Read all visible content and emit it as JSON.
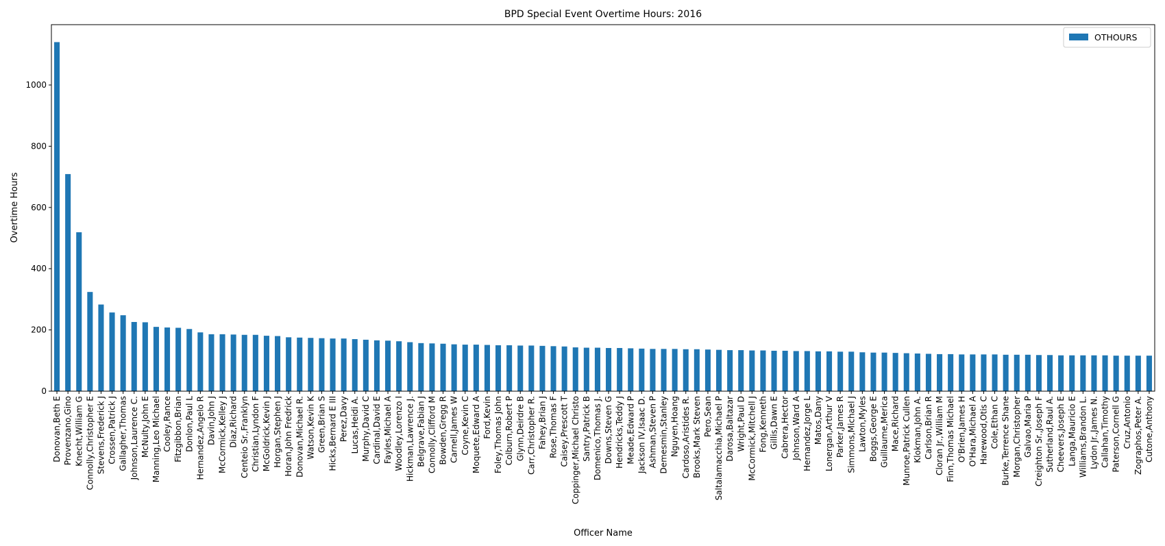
{
  "chart_data": {
    "type": "bar",
    "title": "BPD Special Event Overtime Hours: 2016",
    "xlabel": "Officer Name",
    "ylabel": "Overtime Hours",
    "ylim": [
      0,
      1197
    ],
    "yticks": [
      0,
      200,
      400,
      600,
      800,
      1000
    ],
    "grid": false,
    "legend_position": "top-right",
    "bar_color": "#1f77b4",
    "categories": [
      "Donovan,Beth E",
      "Provenzano,Gino",
      "Knecht,William G",
      "Connolly,Christopher E",
      "Stevens,Frederick J",
      "Crossen,Patrick J",
      "Gallagher,Thomas",
      "Johnson,Laurence C.",
      "McNulty,John E",
      "Manning,Leo Michael",
      "Cooley,Rance",
      "Fitzgibbon,Brian",
      "Donlon,Paul L",
      "Hernandez,Angelo R",
      "Davin,John J",
      "McCormick,Kelley J",
      "Diaz,Richard",
      "Centeio Sr.,Franklyn",
      "Christian,Lyndon F",
      "McGoldrick,Kevin J",
      "Horgan,Stephen J",
      "Horan,John Fredrick",
      "Donovan,Michael R.",
      "Watson,Kevin K",
      "Green,Brian S",
      "Hicks,Bernard E III",
      "Perez,Davy",
      "Lucas,Heidi A.",
      "Murphy,David C",
      "Cardinal,David E",
      "Fayles,Michael A",
      "Woodley,Lorenzo I",
      "Hickman,Lawrence J.",
      "Belgrave,Fabian J",
      "Connolly,Clifford M",
      "Bowden,Gregg R",
      "Carnell,James W",
      "Coyne,Kevin C",
      "Moquete,Edward A",
      "Ford,Kevin",
      "Foley,Thomas John",
      "Colburn,Robert P",
      "Glynn,Deirdre B",
      "Carr,Christopher R.",
      "Fahey,Brian J",
      "Rose,Thomas F",
      "Caisey,Prescott T",
      "Coppinger,Michael Christo",
      "Santry,Patrick B",
      "Domenico,Thomas J.",
      "Downs,Steven G",
      "Hendricks,Teddy J",
      "Meade,Edward P",
      "Jackson IV,Isaac D.",
      "Ashman,Steven P",
      "Demesmin,Stanley",
      "Nguyen,Hoang",
      "Cardoso,Aristides R.",
      "Brooks,Mark Steven",
      "Pero,Sean",
      "Saltalamacchia,Michael P",
      "Darosa,Baltazar",
      "Wright,Paul D",
      "McCormick,Mitchell J",
      "Fong,Kenneth",
      "Gillis,Dawn E",
      "Cabrera,Hector",
      "Johnson,Ward A",
      "Hernandez,Jorge L",
      "Matos,Dany",
      "Lonergan,Arthur V",
      "Parker,James R",
      "Simmons,Michael J",
      "Lawton,Myles",
      "Boggs,George E",
      "Guillaume,Merica",
      "Mace,Richard",
      "Munroe,Patrick Cullen",
      "Klokman,John A.",
      "Carlson,Brian R",
      "Cloran Jr.,William M",
      "Finn,Thomas Michael",
      "O'Brien,James H",
      "O'Hara,Michael A",
      "Harewood,Otis C",
      "Cole,Ethan C",
      "Burke,Terrence Shane",
      "Morgan,Christopher",
      "Galvao,Maria P",
      "Creighton Sr.,Joseph F",
      "Sutherland,Raul A.",
      "Cheevers,Joseph E",
      "Langa,Mauricio E",
      "Williams,Brandon L.",
      "Lydon Jr.,James N.",
      "Callahan,Timothy",
      "Paterson,Cornell G",
      "Cruz,Antonio",
      "Zographos,Peter A.",
      "Cutone,Anthony"
    ],
    "series": [
      {
        "name": "OTHOURS",
        "values": [
          1140,
          709,
          519,
          324,
          283,
          257,
          248,
          226,
          225,
          210,
          208,
          207,
          203,
          192,
          186,
          186,
          185,
          184,
          184,
          181,
          180,
          176,
          175,
          174,
          173,
          172,
          172,
          170,
          168,
          166,
          165,
          163,
          160,
          157,
          156,
          155,
          153,
          152,
          152,
          151,
          150,
          150,
          149,
          149,
          148,
          147,
          146,
          143,
          142,
          142,
          141,
          141,
          140,
          139,
          138,
          138,
          138,
          137,
          137,
          136,
          135,
          134,
          134,
          133,
          133,
          132,
          132,
          131,
          131,
          130,
          130,
          129,
          129,
          127,
          126,
          126,
          125,
          124,
          123,
          122,
          121,
          121,
          120,
          120,
          120,
          120,
          119,
          119,
          119,
          118,
          118,
          117,
          117,
          117,
          117,
          117,
          116,
          116,
          116,
          116
        ]
      }
    ]
  }
}
